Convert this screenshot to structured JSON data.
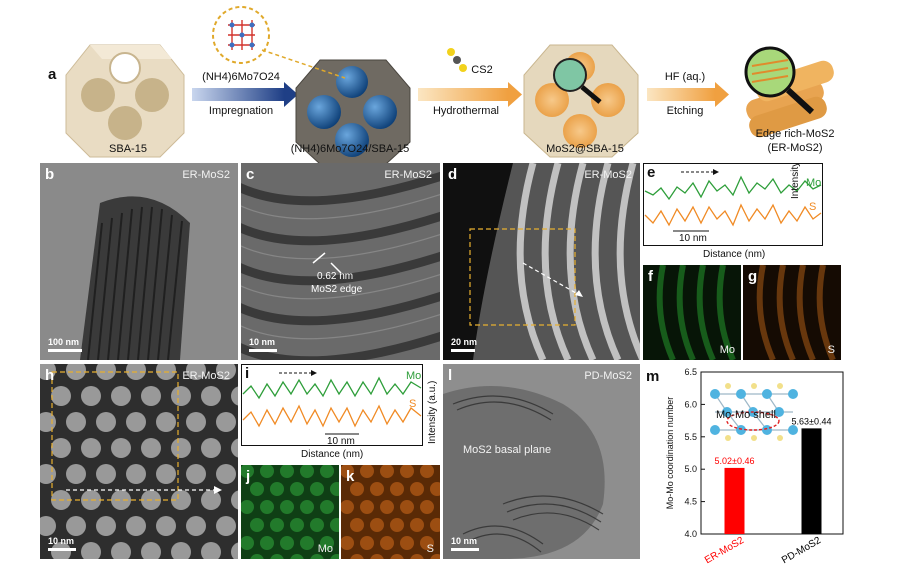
{
  "panel_letters": {
    "a": "a",
    "b": "b",
    "c": "c",
    "d": "d",
    "e": "e",
    "f": "f",
    "g": "g",
    "h": "h",
    "i": "i",
    "j": "j",
    "k": "k",
    "l": "l",
    "m": "m"
  },
  "schematic": {
    "sba15": "SBA-15",
    "precursor_top": "(NH4)6Mo7O24",
    "impregnation": "Impregnation",
    "intermediate": "(NH4)6Mo7O24/SBA-15",
    "cs2": "CS2",
    "hydrothermal": "Hydrothermal",
    "composite": "MoS2@SBA-15",
    "hf": "HF (aq.)",
    "etching": "Etching",
    "product_line1": "Edge rich-MoS2",
    "product_line2": "(ER-MoS2)"
  },
  "micrographs": {
    "b": {
      "tag": "ER-MoS2",
      "scale": "100 nm"
    },
    "c": {
      "tag": "ER-MoS2",
      "scale": "10 nm",
      "annot1": "0.62 nm",
      "annot2": "MoS2 edge"
    },
    "d": {
      "tag": "ER-MoS2",
      "scale": "20 nm"
    },
    "f": {
      "element": "Mo"
    },
    "g": {
      "element": "S"
    },
    "h": {
      "tag": "ER-MoS2",
      "scale": "10 nm"
    },
    "j": {
      "element": "Mo"
    },
    "k": {
      "element": "S"
    },
    "l": {
      "tag": "PD-MoS2",
      "scale": "10 nm",
      "annot": "MoS2 basal plane"
    }
  },
  "line_profiles": {
    "e": {
      "mo": "Mo",
      "s": "S",
      "scale": "10 nm",
      "xlabel": "Distance (nm)",
      "ylabel": "Intensity (a.u.)"
    },
    "i": {
      "mo": "Mo",
      "s": "S",
      "scale": "10 nm",
      "xlabel": "Distance (nm)",
      "ylabel": "Intensity (a.u.)"
    }
  },
  "colors": {
    "mo": "#2e9e3a",
    "s": "#f08a24",
    "er_bar": "#ff0000",
    "pd_bar": "#000000",
    "arrow_blue": "#1f3f86",
    "arrow_orange": "#f0a040"
  },
  "chart_data": {
    "type": "bar",
    "categories": [
      "ER-MoS2",
      "PD-MoS2"
    ],
    "values": [
      5.02,
      5.63
    ],
    "errors": [
      0.46,
      0.44
    ],
    "value_labels": [
      "5.02±0.46",
      "5.63±0.44"
    ],
    "ylabel": "Mo-Mo coordination number",
    "ylim": [
      4.0,
      6.5
    ],
    "yticks": [
      "4.0",
      "4.5",
      "5.0",
      "5.5",
      "6.0",
      "6.5"
    ],
    "inset_label": "Mo-Mo shell",
    "bar_colors": [
      "#ff0000",
      "#000000"
    ],
    "category_label_colors": [
      "#ff0000",
      "#000000"
    ]
  }
}
